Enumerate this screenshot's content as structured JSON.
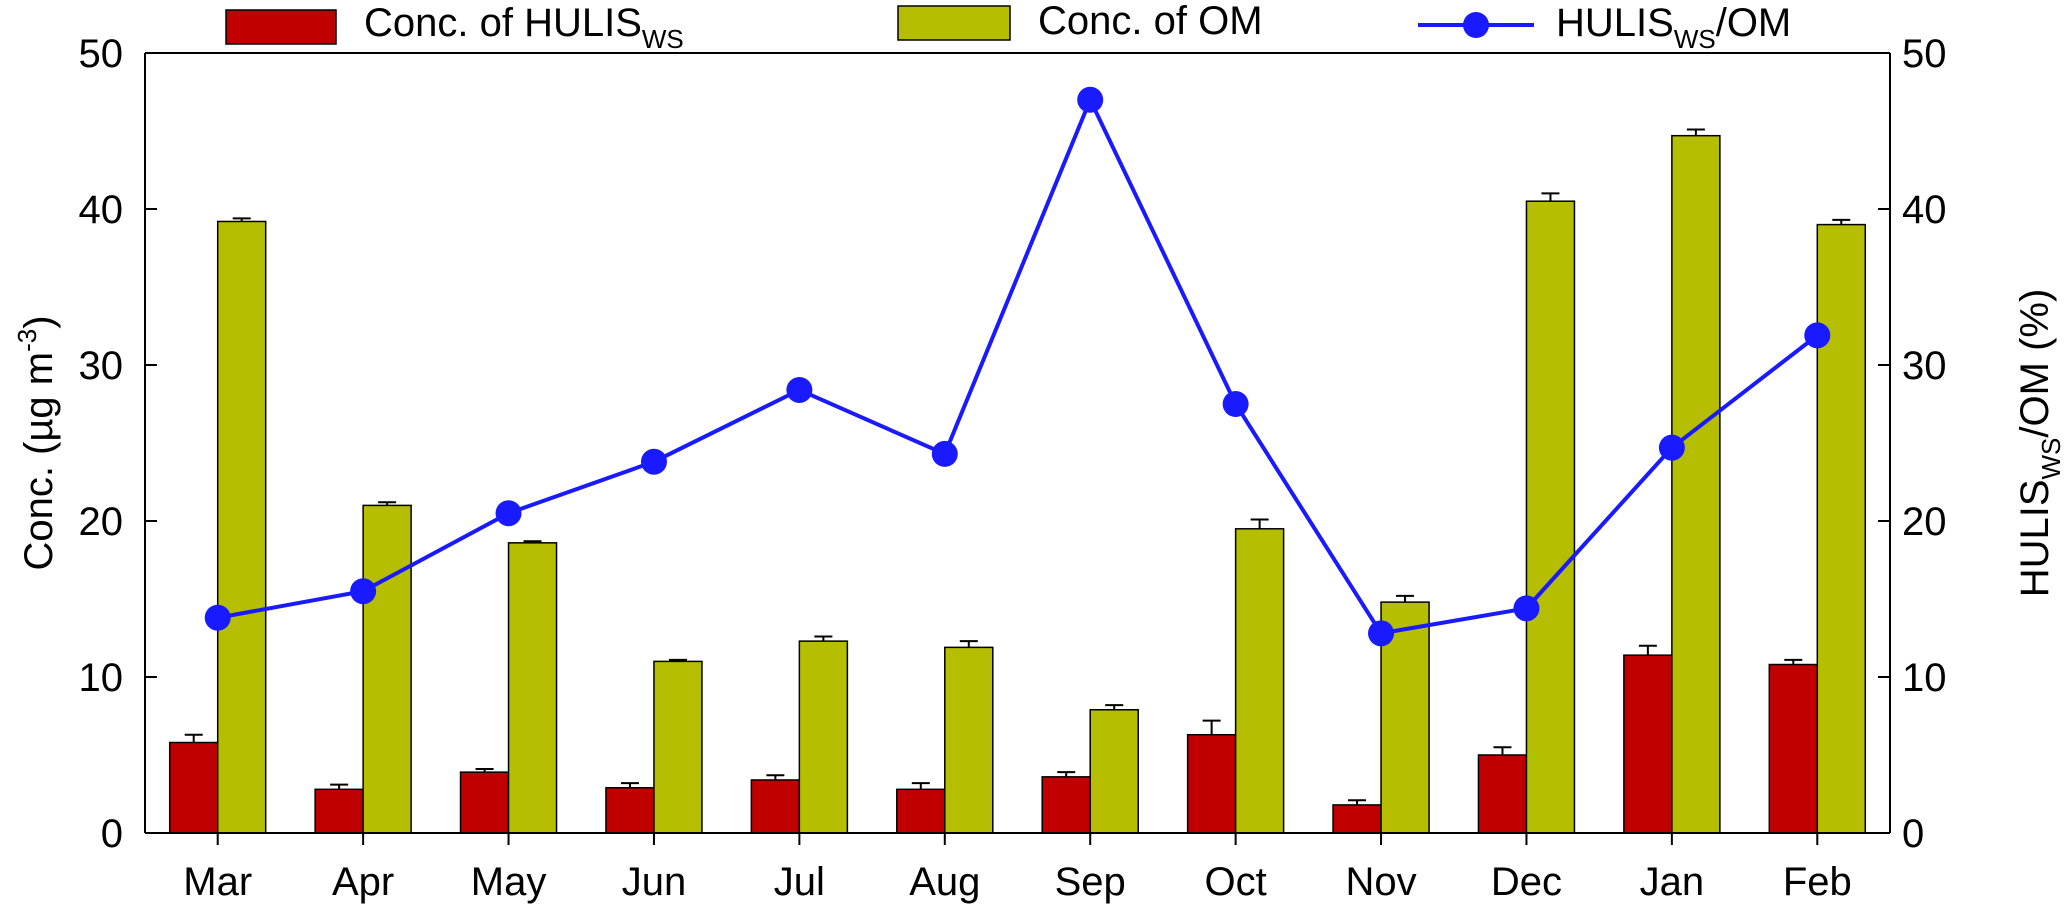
{
  "chart_data": {
    "type": "bar",
    "categories": [
      "Mar",
      "Apr",
      "May",
      "Jun",
      "Jul",
      "Aug",
      "Sep",
      "Oct",
      "Nov",
      "Dec",
      "Jan",
      "Feb"
    ],
    "series": [
      {
        "name": "Conc. of HULIS",
        "name_sub": "WS",
        "kind": "bar",
        "axis": "left",
        "color": "#C00000",
        "values": [
          5.8,
          2.8,
          3.9,
          2.9,
          3.4,
          2.8,
          3.6,
          6.3,
          1.8,
          5.0,
          11.4,
          10.8
        ],
        "errors": [
          0.5,
          0.3,
          0.2,
          0.3,
          0.3,
          0.4,
          0.3,
          0.9,
          0.3,
          0.5,
          0.6,
          0.3
        ]
      },
      {
        "name": "Conc. of OM",
        "kind": "bar",
        "axis": "left",
        "color": "#B5BE00",
        "values": [
          39.2,
          21.0,
          18.6,
          11.0,
          12.3,
          11.9,
          7.9,
          19.5,
          14.8,
          40.5,
          44.7,
          39.0
        ],
        "errors": [
          0.2,
          0.2,
          0.1,
          0.1,
          0.3,
          0.4,
          0.3,
          0.6,
          0.4,
          0.5,
          0.4,
          0.3
        ]
      },
      {
        "name": "HULIS",
        "name_sub": "WS",
        "name_suffix": "/OM",
        "kind": "line",
        "axis": "right",
        "color": "#1A1AFF",
        "values": [
          13.8,
          15.5,
          20.5,
          23.8,
          28.4,
          24.3,
          47.0,
          27.5,
          12.8,
          14.4,
          24.7,
          31.9
        ]
      }
    ],
    "y_left": {
      "label_main": "Conc.  (µg m",
      "label_sup": "-3",
      "label_end": ")",
      "ylim": [
        0,
        50
      ],
      "ticks": [
        0,
        10,
        20,
        30,
        40,
        50
      ]
    },
    "y_right": {
      "label_main": "HULIS",
      "label_sub": "WS",
      "label_end": "/OM (%)",
      "ylim": [
        0,
        50
      ],
      "ticks": [
        0,
        10,
        20,
        30,
        40,
        50
      ]
    },
    "legend_position": "top",
    "grid": false
  }
}
